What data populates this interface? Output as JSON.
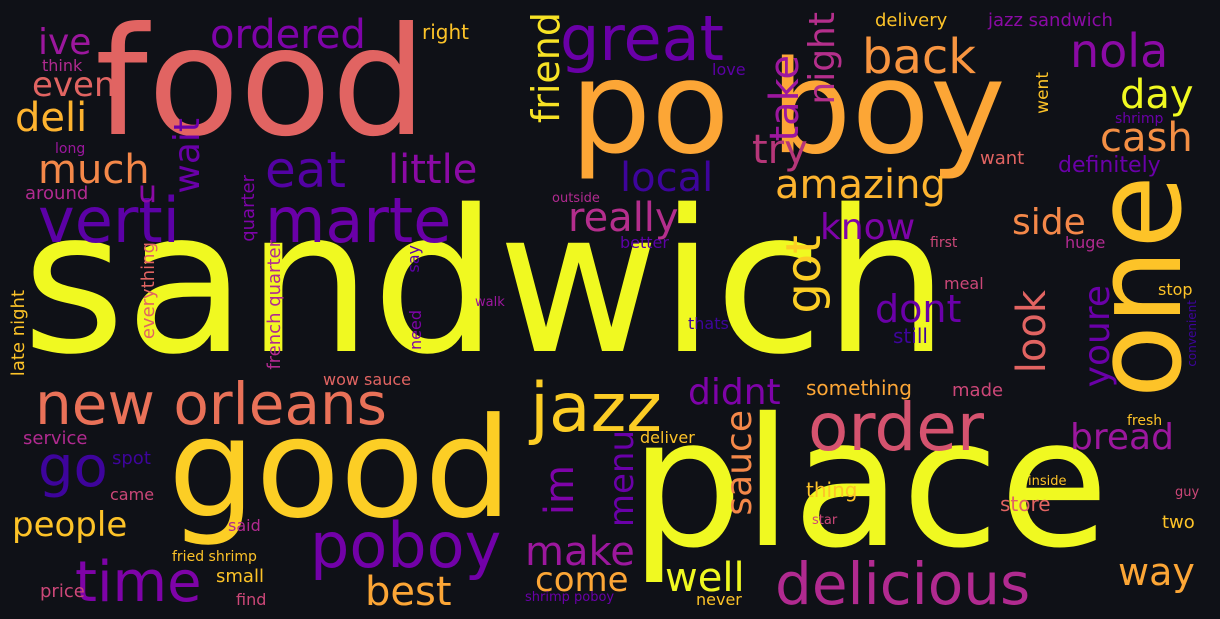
{
  "words": [
    {
      "text": "sandwich",
      "color": "#f0f921"
    },
    {
      "text": "food",
      "color": "#e16462"
    },
    {
      "text": "po boy",
      "color": "#fca636"
    },
    {
      "text": "good",
      "color": "#fcce25"
    },
    {
      "text": "place",
      "color": "#f0f921"
    },
    {
      "text": "one",
      "color": "#fdc328"
    },
    {
      "text": "great",
      "color": "#6a00a8"
    },
    {
      "text": "verti",
      "color": "#5c01a6"
    },
    {
      "text": "marte",
      "color": "#6a00a8"
    },
    {
      "text": "new orleans",
      "color": "#e97158"
    },
    {
      "text": "jazz",
      "color": "#fccd25"
    },
    {
      "text": "order",
      "color": "#d5536f"
    },
    {
      "text": "poboy",
      "color": "#7201a8"
    },
    {
      "text": "delicious",
      "color": "#b12a90"
    },
    {
      "text": "time",
      "color": "#7e03a8"
    },
    {
      "text": "go",
      "color": "#3e049c"
    },
    {
      "text": "eat",
      "color": "#5302a3"
    },
    {
      "text": "back",
      "color": "#f89540"
    },
    {
      "text": "nola",
      "color": "#8b0aa5"
    },
    {
      "text": "ordered",
      "color": "#7e03a8"
    },
    {
      "text": "deli",
      "color": "#fdb32f"
    },
    {
      "text": "much",
      "color": "#f48849"
    },
    {
      "text": "ive",
      "color": "#9c179e"
    },
    {
      "text": "even",
      "color": "#e16462"
    },
    {
      "text": "little",
      "color": "#8b0aa5"
    },
    {
      "text": "really",
      "color": "#b42e8d"
    },
    {
      "text": "amazing",
      "color": "#fdb42f"
    },
    {
      "text": "take",
      "color": "#9c179e"
    },
    {
      "text": "friend",
      "color": "#f7e225"
    },
    {
      "text": "night",
      "color": "#b52f8c"
    },
    {
      "text": "try",
      "color": "#b63679"
    },
    {
      "text": "got",
      "color": "#fcce25"
    },
    {
      "text": "day",
      "color": "#f0f921"
    },
    {
      "text": "cash",
      "color": "#f48f44"
    },
    {
      "text": "local",
      "color": "#3e049c"
    },
    {
      "text": "know",
      "color": "#7e03a8"
    },
    {
      "text": "side",
      "color": "#f48849"
    },
    {
      "text": "dont",
      "color": "#6a00a8"
    },
    {
      "text": "look",
      "color": "#e16462"
    },
    {
      "text": "youre",
      "color": "#6a00a8"
    },
    {
      "text": "bread",
      "color": "#9c179e"
    },
    {
      "text": "didnt",
      "color": "#7e03a8"
    },
    {
      "text": "im",
      "color": "#7e03a8"
    },
    {
      "text": "menu",
      "color": "#6a00a8"
    },
    {
      "text": "sauce",
      "color": "#f48849"
    },
    {
      "text": "make",
      "color": "#9c179e"
    },
    {
      "text": "come",
      "color": "#fca636"
    },
    {
      "text": "well",
      "color": "#f0f921"
    },
    {
      "text": "best",
      "color": "#fca636"
    },
    {
      "text": "way",
      "color": "#fca636"
    },
    {
      "text": "people",
      "color": "#fdc328"
    },
    {
      "text": "wait",
      "color": "#6a00a8"
    },
    {
      "text": "u",
      "color": "#8b0aa5"
    },
    {
      "text": "right",
      "color": "#fdc328"
    },
    {
      "text": "delivery",
      "color": "#fdc328"
    },
    {
      "text": "jazz sandwich",
      "color": "#8b0aa5"
    },
    {
      "text": "went",
      "color": "#fdc328"
    },
    {
      "text": "love",
      "color": "#5c01a6"
    },
    {
      "text": "shrimp",
      "color": "#6a00a8"
    },
    {
      "text": "think",
      "color": "#b12a90"
    },
    {
      "text": "long",
      "color": "#9c179e"
    },
    {
      "text": "around",
      "color": "#b12a90"
    },
    {
      "text": "want",
      "color": "#e16462"
    },
    {
      "text": "definitely",
      "color": "#6a00a8"
    },
    {
      "text": "outside",
      "color": "#b12a90"
    },
    {
      "text": "better",
      "color": "#5c01a6"
    },
    {
      "text": "first",
      "color": "#cc4778"
    },
    {
      "text": "huge",
      "color": "#b12a90"
    },
    {
      "text": "meal",
      "color": "#cc4778"
    },
    {
      "text": "stop",
      "color": "#fdc328"
    },
    {
      "text": "still",
      "color": "#3e049c"
    },
    {
      "text": "walk",
      "color": "#9c179e"
    },
    {
      "text": "thats",
      "color": "#3e049c"
    },
    {
      "text": "say",
      "color": "#5c01a6"
    },
    {
      "text": "need",
      "color": "#7e03a8"
    },
    {
      "text": "quarter",
      "color": "#7e03a8"
    },
    {
      "text": "late night",
      "color": "#fdc328"
    },
    {
      "text": "everything",
      "color": "#e16462"
    },
    {
      "text": "french quarter",
      "color": "#b12a90"
    },
    {
      "text": "wow sauce",
      "color": "#e16462"
    },
    {
      "text": "something",
      "color": "#fca636"
    },
    {
      "text": "made",
      "color": "#cc4778"
    },
    {
      "text": "fresh",
      "color": "#fdc328"
    },
    {
      "text": "convenient",
      "color": "#3e049c"
    },
    {
      "text": "service",
      "color": "#b12a90"
    },
    {
      "text": "spot",
      "color": "#3e049c"
    },
    {
      "text": "deliver",
      "color": "#fdc328"
    },
    {
      "text": "thing",
      "color": "#fdc328"
    },
    {
      "text": "inside",
      "color": "#fdc328"
    },
    {
      "text": "guy",
      "color": "#cc4778"
    },
    {
      "text": "store",
      "color": "#e16462"
    },
    {
      "text": "came",
      "color": "#cc4778"
    },
    {
      "text": "said",
      "color": "#b12a90"
    },
    {
      "text": "star",
      "color": "#cc4778"
    },
    {
      "text": "two",
      "color": "#fdc328"
    },
    {
      "text": "fried shrimp",
      "color": "#fdc328"
    },
    {
      "text": "small",
      "color": "#fdc328"
    },
    {
      "text": "price",
      "color": "#cc4778"
    },
    {
      "text": "find",
      "color": "#cc4778"
    },
    {
      "text": "shrimp poboy",
      "color": "#6a00a8"
    },
    {
      "text": "never",
      "color": "#fdc328"
    }
  ]
}
